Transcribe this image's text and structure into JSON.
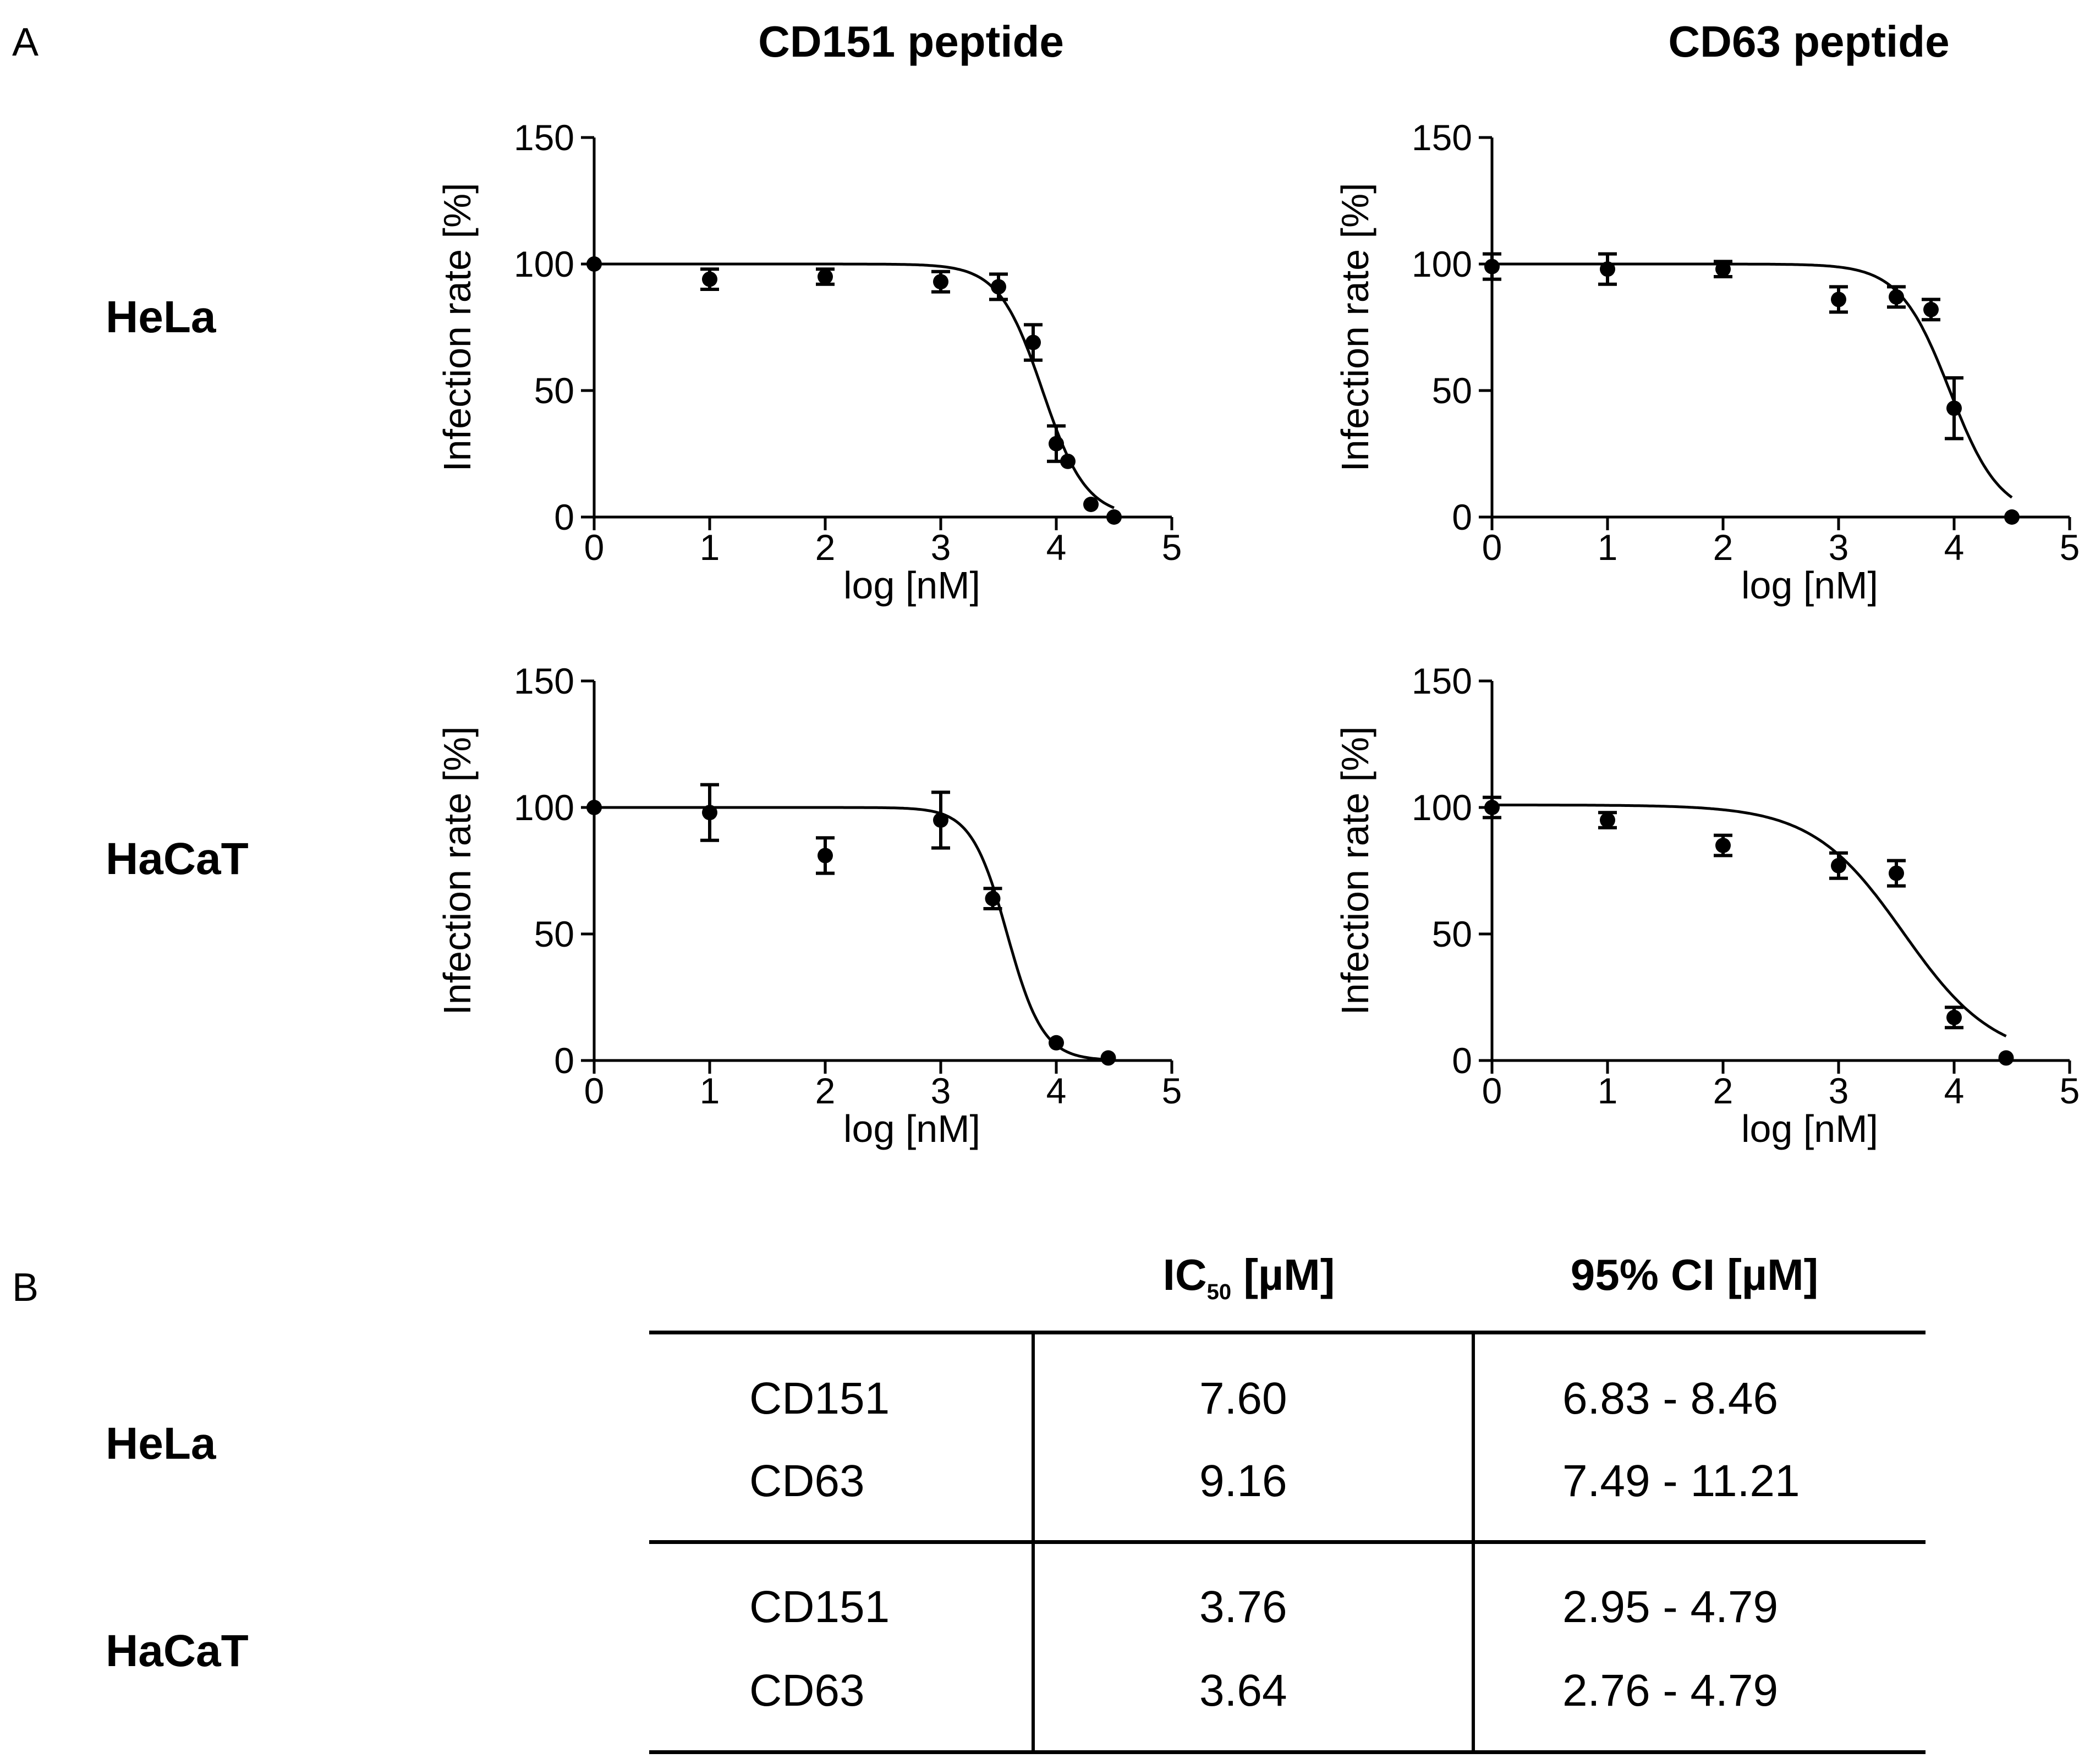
{
  "panels": {
    "a": "A",
    "b": "B"
  },
  "columns": [
    "CD151 peptide",
    "CD63 peptide"
  ],
  "rows": [
    "HeLa",
    "HaCaT"
  ],
  "chart_data": [
    {
      "type": "scatter",
      "cell": "HeLa",
      "peptide": "CD151 peptide",
      "xlabel": "log [nM]",
      "ylabel": "Infection rate [%]",
      "xlim": [
        0,
        5
      ],
      "ylim": [
        0,
        150
      ],
      "xticks": [
        0,
        1,
        2,
        3,
        4,
        5
      ],
      "yticks": [
        0,
        50,
        100,
        150
      ],
      "points": [
        {
          "x": 0,
          "y": 100,
          "err": 0
        },
        {
          "x": 1,
          "y": 94,
          "err": 4
        },
        {
          "x": 2,
          "y": 95,
          "err": 3
        },
        {
          "x": 3,
          "y": 93,
          "err": 4
        },
        {
          "x": 3.5,
          "y": 91,
          "err": 5
        },
        {
          "x": 3.8,
          "y": 69,
          "err": 7
        },
        {
          "x": 4.0,
          "y": 29,
          "err": 7
        },
        {
          "x": 4.1,
          "y": 22,
          "err": 0
        },
        {
          "x": 4.3,
          "y": 5,
          "err": 0
        },
        {
          "x": 4.5,
          "y": 0,
          "err": 0
        }
      ],
      "fit": {
        "top": 100,
        "bottom": 0,
        "log_ic50": 3.881,
        "hill": 2.3
      }
    },
    {
      "type": "scatter",
      "cell": "HeLa",
      "peptide": "CD63 peptide",
      "xlabel": "log [nM]",
      "ylabel": "Infection rate [%]",
      "xlim": [
        0,
        5
      ],
      "ylim": [
        0,
        150
      ],
      "xticks": [
        0,
        1,
        2,
        3,
        4,
        5
      ],
      "yticks": [
        0,
        50,
        100,
        150
      ],
      "points": [
        {
          "x": 0,
          "y": 99,
          "err": 5
        },
        {
          "x": 1,
          "y": 98,
          "err": 6
        },
        {
          "x": 2,
          "y": 98,
          "err": 3
        },
        {
          "x": 3,
          "y": 86,
          "err": 5
        },
        {
          "x": 3.5,
          "y": 87,
          "err": 4
        },
        {
          "x": 3.8,
          "y": 82,
          "err": 4
        },
        {
          "x": 4.0,
          "y": 43,
          "err": 12
        },
        {
          "x": 4.5,
          "y": 0,
          "err": 0
        }
      ],
      "fit": {
        "top": 100,
        "bottom": 0,
        "log_ic50": 3.962,
        "hill": 2.0
      }
    },
    {
      "type": "scatter",
      "cell": "HaCaT",
      "peptide": "CD151 peptide",
      "xlabel": "log [nM]",
      "ylabel": "Infection rate [%]",
      "xlim": [
        0,
        5
      ],
      "ylim": [
        0,
        150
      ],
      "xticks": [
        0,
        1,
        2,
        3,
        4,
        5
      ],
      "yticks": [
        0,
        50,
        100,
        150
      ],
      "points": [
        {
          "x": 0,
          "y": 100,
          "err": 0
        },
        {
          "x": 1,
          "y": 98,
          "err": 11
        },
        {
          "x": 2,
          "y": 81,
          "err": 7
        },
        {
          "x": 3,
          "y": 95,
          "err": 11
        },
        {
          "x": 3.45,
          "y": 64,
          "err": 4
        },
        {
          "x": 4.0,
          "y": 7,
          "err": 0
        },
        {
          "x": 4.45,
          "y": 1,
          "err": 0
        }
      ],
      "fit": {
        "top": 100,
        "bottom": 0,
        "log_ic50": 3.575,
        "hill": 2.8
      }
    },
    {
      "type": "scatter",
      "cell": "HaCaT",
      "peptide": "CD63 peptide",
      "xlabel": "log [nM]",
      "ylabel": "Infection rate [%]",
      "xlim": [
        0,
        5
      ],
      "ylim": [
        0,
        150
      ],
      "xticks": [
        0,
        1,
        2,
        3,
        4,
        5
      ],
      "yticks": [
        0,
        50,
        100,
        150
      ],
      "points": [
        {
          "x": 0,
          "y": 100,
          "err": 4
        },
        {
          "x": 1,
          "y": 95,
          "err": 3
        },
        {
          "x": 2,
          "y": 85,
          "err": 4
        },
        {
          "x": 3,
          "y": 77,
          "err": 5
        },
        {
          "x": 3.5,
          "y": 74,
          "err": 5
        },
        {
          "x": 4.0,
          "y": 17,
          "err": 4
        },
        {
          "x": 4.45,
          "y": 1,
          "err": 0
        }
      ],
      "fit": {
        "top": 101,
        "bottom": 0,
        "log_ic50": 3.561,
        "hill": 1.1
      }
    }
  ],
  "table": {
    "headers": {
      "ic50_main": "IC",
      "ic50_sub": "50",
      "ic50_unit": " [µM]",
      "ci": "95% CI [µM]"
    },
    "groups": [
      {
        "cell": "HeLa",
        "rows": [
          {
            "peptide": "CD151",
            "ic50": "7.60",
            "ci": "6.83 - 8.46"
          },
          {
            "peptide": "CD63",
            "ic50": "9.16",
            "ci": "7.49 - 11.21"
          }
        ]
      },
      {
        "cell": "HaCaT",
        "rows": [
          {
            "peptide": "CD151",
            "ic50": "3.76",
            "ci": "2.95 - 4.79"
          },
          {
            "peptide": "CD63",
            "ic50": "3.64",
            "ci": "2.76 - 4.79"
          }
        ]
      }
    ]
  }
}
